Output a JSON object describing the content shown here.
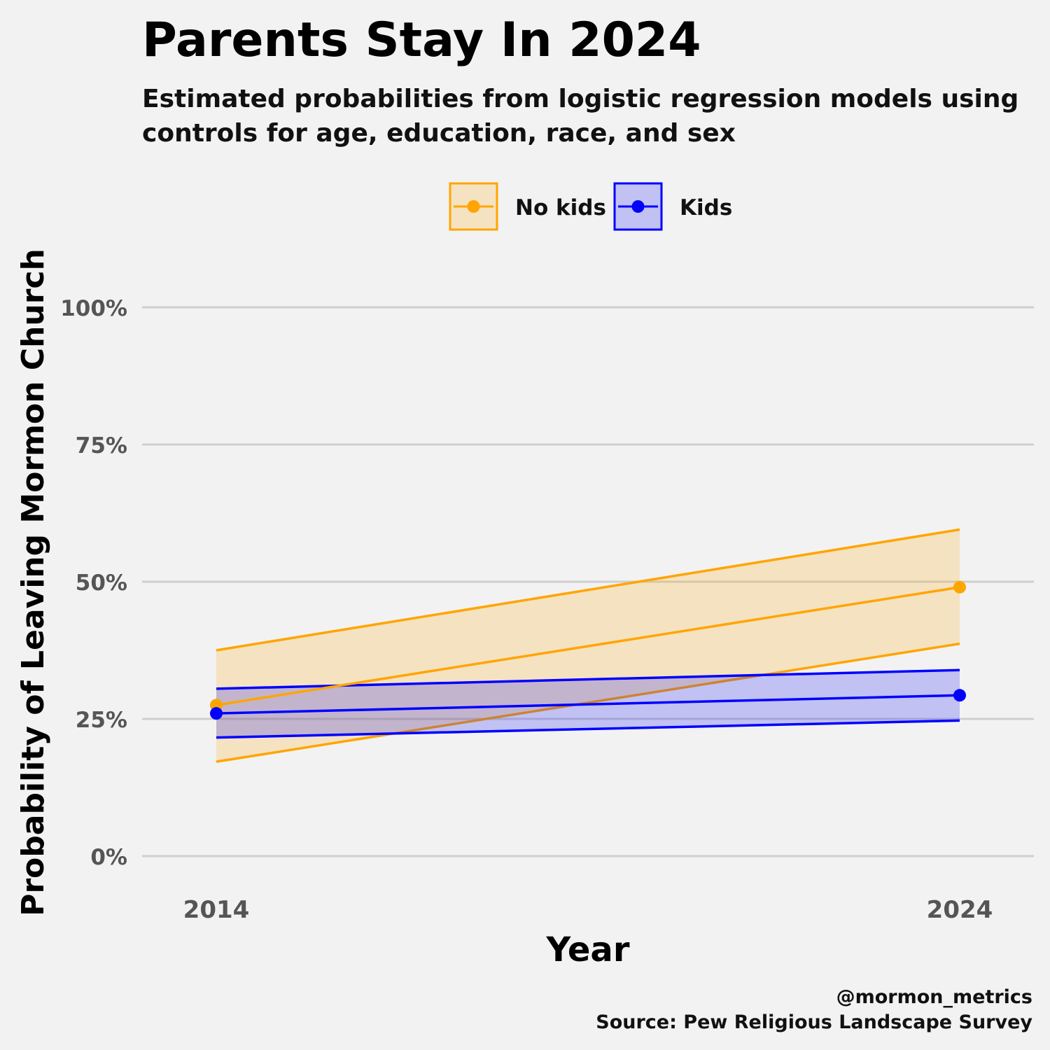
{
  "chart_data": {
    "type": "line",
    "title": "Parents Stay In 2024",
    "subtitle_lines": [
      "Estimated probabilities from logistic regression models using",
      "controls for age, education, race, and sex"
    ],
    "xlabel": "Year",
    "ylabel": "Probability of Leaving Mormon Church",
    "x": [
      2014,
      2024
    ],
    "x_tick_labels": [
      "2014",
      "2024"
    ],
    "ylim": [
      0,
      1
    ],
    "y_ticks": [
      0,
      0.25,
      0.5,
      0.75,
      1.0
    ],
    "y_tick_labels": [
      "0%",
      "25%",
      "50%",
      "75%",
      "100%"
    ],
    "grid": true,
    "legend_position": "top",
    "series": [
      {
        "name": "No kids",
        "color": "#FFA500",
        "values": [
          0.275,
          0.49
        ],
        "lower": [
          0.172,
          0.387
        ],
        "upper": [
          0.375,
          0.595
        ]
      },
      {
        "name": "Kids",
        "color": "#0000FF",
        "values": [
          0.26,
          0.293
        ],
        "lower": [
          0.216,
          0.247
        ],
        "upper": [
          0.305,
          0.339
        ]
      }
    ],
    "caption_lines": [
      "@mormon_metrics",
      "Source: Pew Religious Landscape Survey"
    ]
  }
}
